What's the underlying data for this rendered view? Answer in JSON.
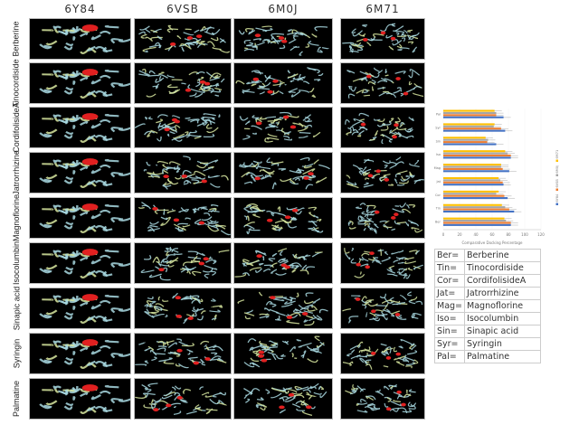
{
  "columns": [
    "6Y84",
    "6VSB",
    "6M0J",
    "6M71"
  ],
  "rows": [
    "Berberine",
    "Tinocordiside",
    "CordifolisideA",
    "Jatrorrhizine",
    "Magnoflorine",
    "Isocolumbin",
    "Sinapic acid",
    "Syringin",
    "Palmatine"
  ],
  "abbreviations": [
    {
      "abbr": "Ber=",
      "name": "Berberine"
    },
    {
      "abbr": "Tin=",
      "name": "Tinocordiside"
    },
    {
      "abbr": "Cor=",
      "name": "CordifolisideA"
    },
    {
      "abbr": "Jat=",
      "name": "Jatrorrhizine"
    },
    {
      "abbr": "Mag=",
      "name": "Magnoflorine"
    },
    {
      "abbr": "Iso=",
      "name": "Isocolumbin"
    },
    {
      "abbr": "Sin=",
      "name": "Sinapic acid"
    },
    {
      "abbr": "Syr=",
      "name": "Syringin"
    },
    {
      "abbr": "Pal=",
      "name": "Palmatine"
    }
  ],
  "colors": {
    "protein": "#a8d8e0",
    "ligand": "#e02020",
    "panel_bg": "#000000"
  },
  "chart_data": {
    "type": "bar",
    "orientation": "horizontal",
    "categories": [
      "Ber",
      "Tin",
      "Cor",
      "Jat",
      "Mag",
      "Iso",
      "Sin",
      "Syr",
      "Pal"
    ],
    "series": [
      {
        "name": "6Y84",
        "color": "#4472c4",
        "values": [
          83,
          87,
          79,
          74,
          81,
          83,
          65,
          76,
          74
        ]
      },
      {
        "name": "6VSB",
        "color": "#ed7d31",
        "values": [
          83,
          81,
          75,
          73,
          73,
          83,
          54,
          71,
          65
        ]
      },
      {
        "name": "6M0J",
        "color": "#a5a5a5",
        "values": [
          77,
          76,
          65,
          70,
          71,
          79,
          55,
          62,
          65
        ]
      },
      {
        "name": "6M71",
        "color": "#ffc000",
        "values": [
          75,
          72,
          68,
          68,
          71,
          76,
          52,
          63,
          63
        ]
      }
    ],
    "xticks": [
      "0",
      "20",
      "40",
      "60",
      "80",
      "100",
      "120"
    ],
    "xlim": [
      0,
      120
    ],
    "xlabel": "Comparative Docking Percentage",
    "legend": "right",
    "error_bars": true
  }
}
